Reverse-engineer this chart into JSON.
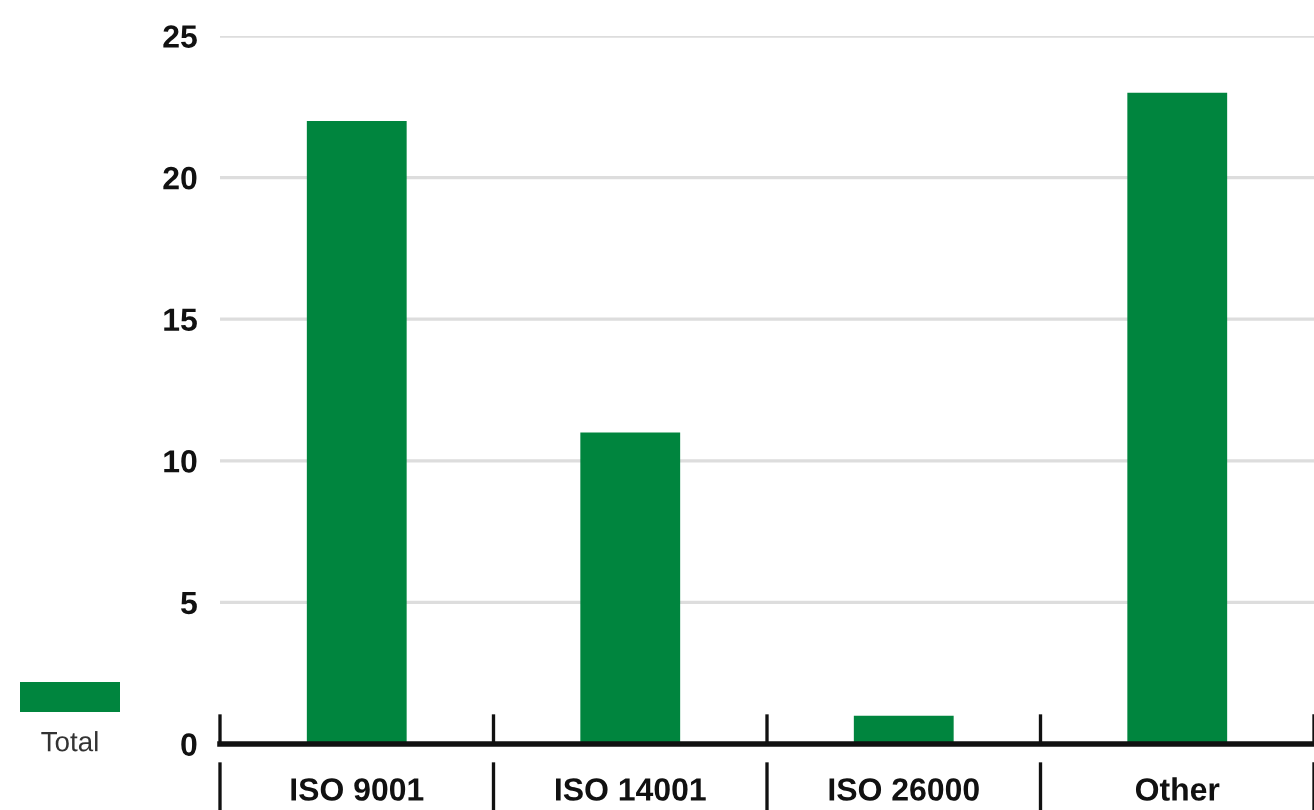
{
  "chart_data": {
    "type": "bar",
    "categories": [
      "ISO 9001",
      "ISO 14001",
      "ISO 26000",
      "Other"
    ],
    "series": [
      {
        "name": "Total",
        "color": "#00853e",
        "values": [
          22,
          11,
          1,
          23
        ]
      }
    ],
    "ylim": [
      0,
      25
    ],
    "yticks": [
      0,
      5,
      10,
      15,
      20,
      25
    ],
    "grid": "y",
    "legend": "bottom left"
  }
}
